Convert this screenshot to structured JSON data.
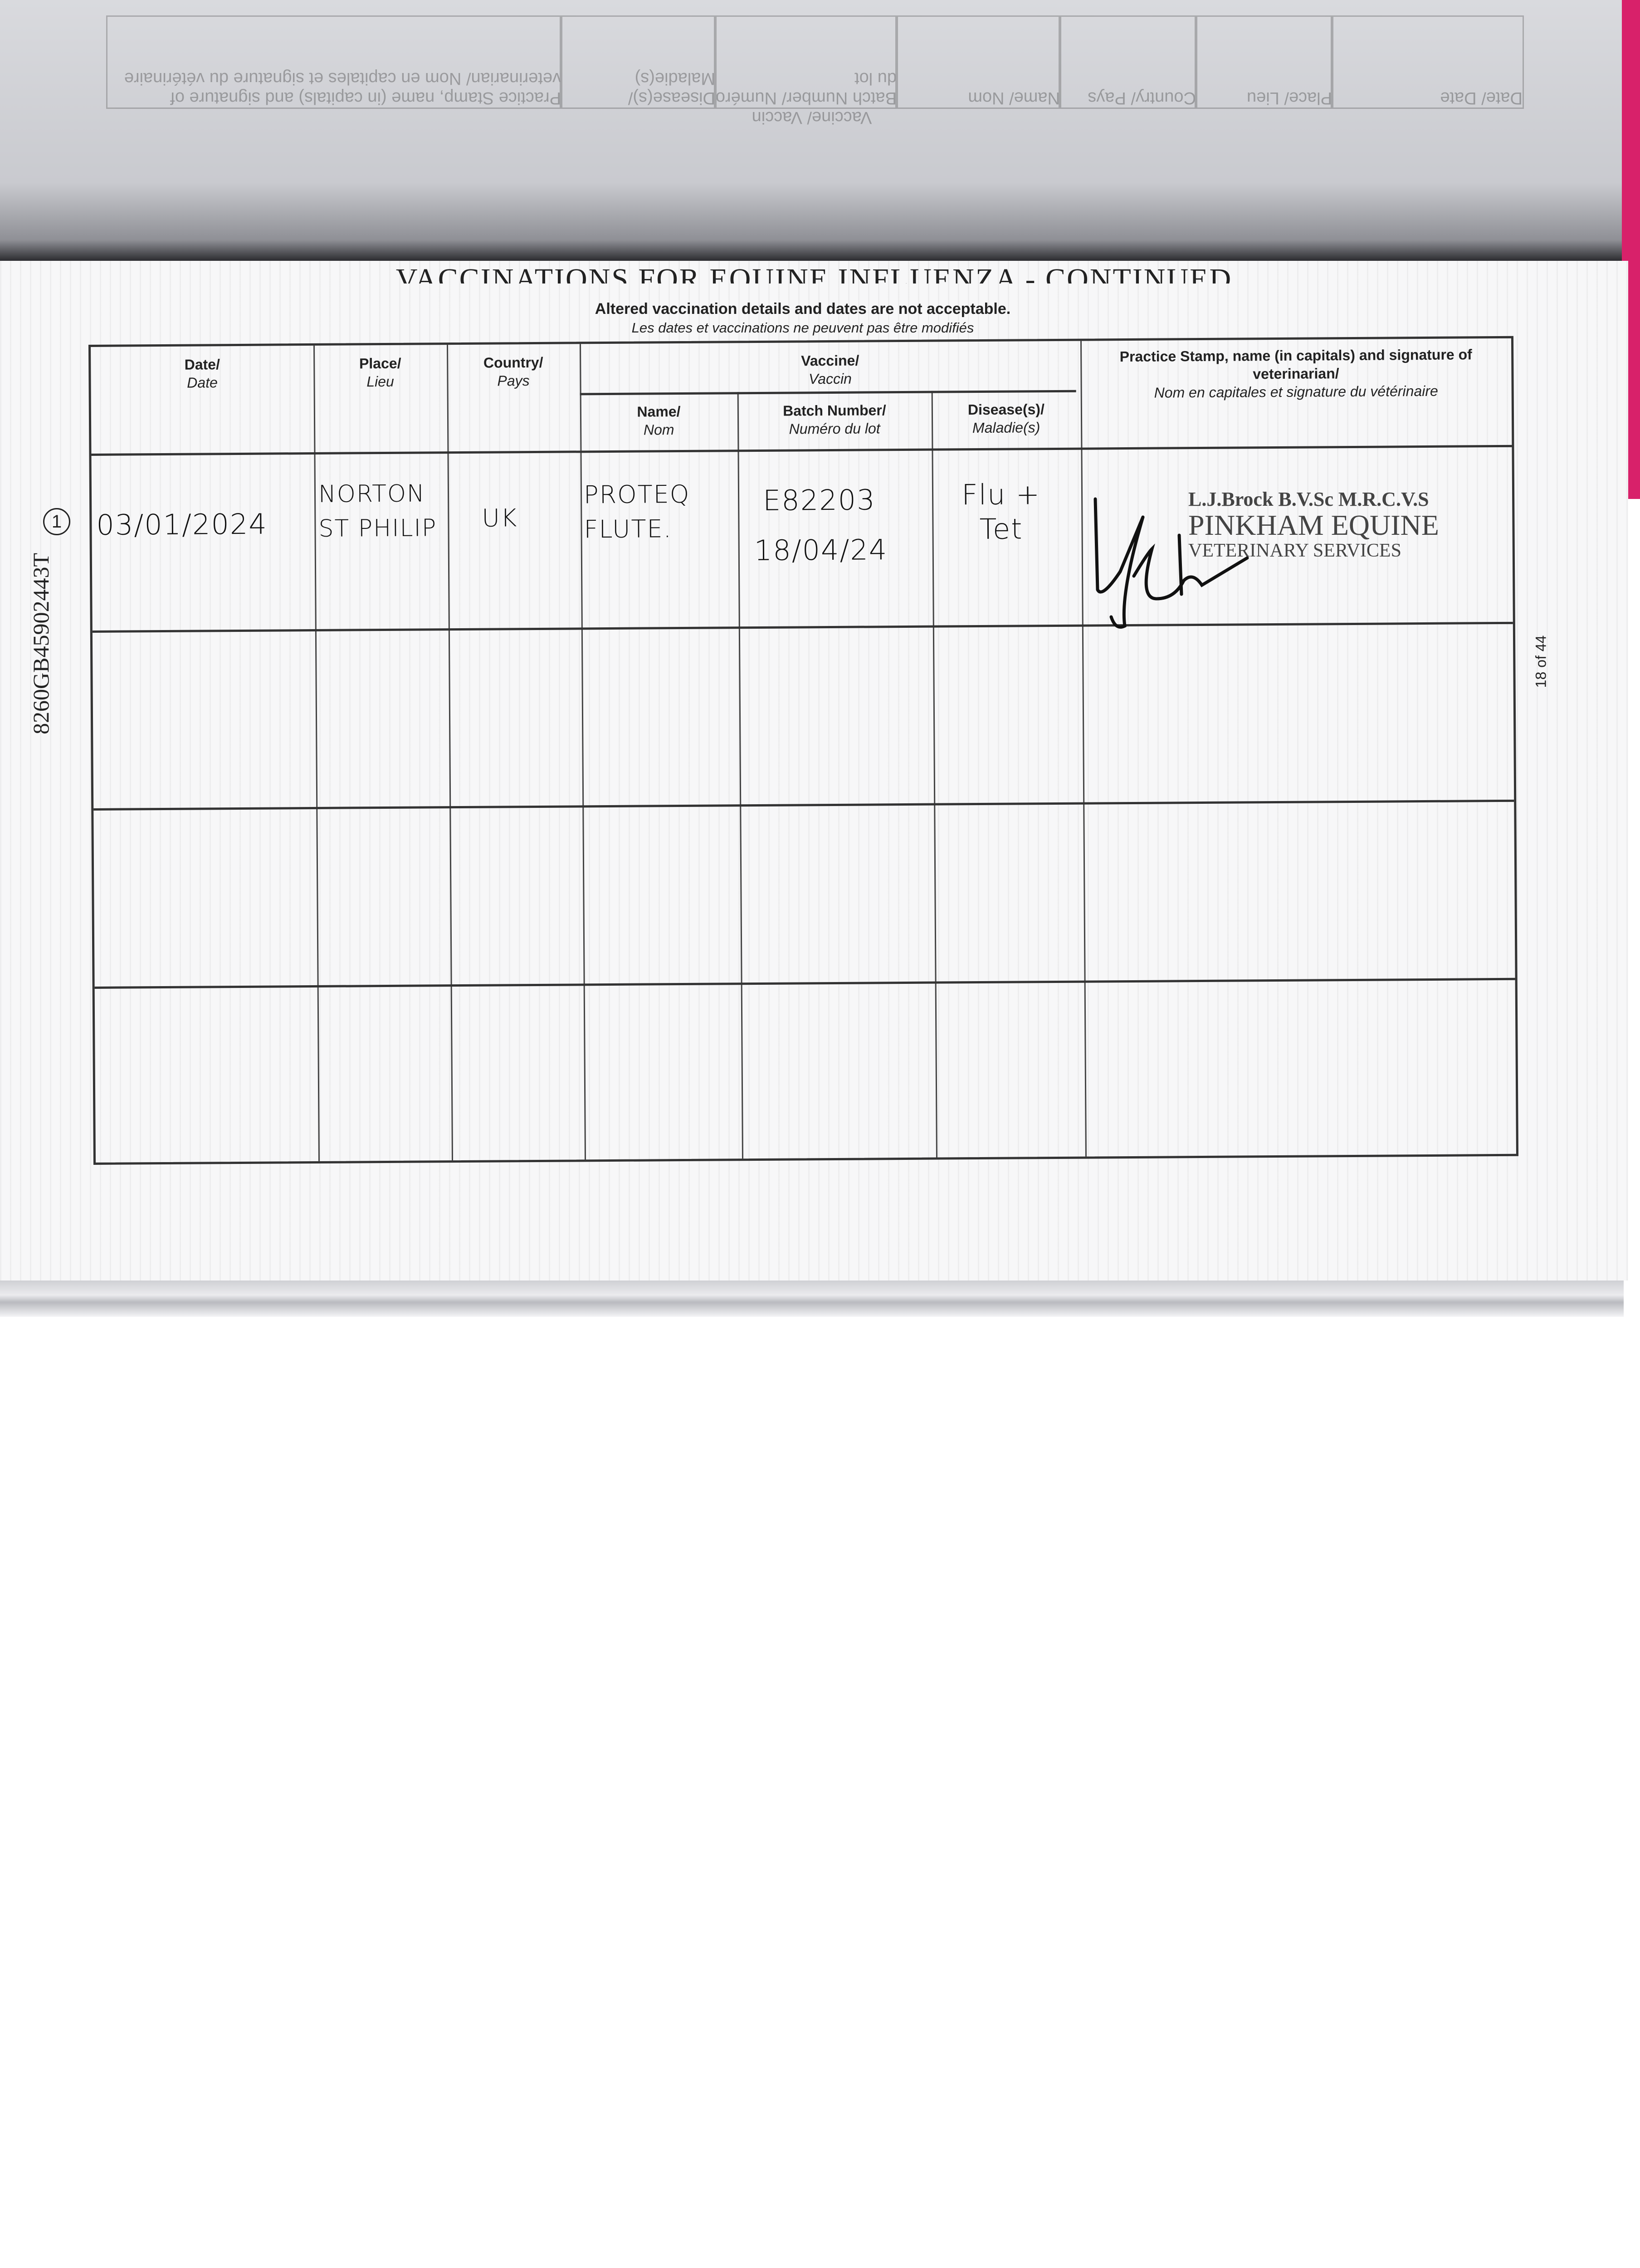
{
  "previous_page": {
    "headers": [
      "Date/ Date",
      "Place/ Lieu",
      "Country/ Pays",
      "Vaccine/ Vaccin",
      "Name/ Nom",
      "Batch Number/ Numéro du lot",
      "Disease(s)/ Maladie(s)",
      "Practice Stamp, name (in capitals) and signature of veterinarian/ Nom en capitales et signature du vétérinaire"
    ]
  },
  "title": "VACCINATIONS FOR EQUINE INFLUENZA - CONTINUED",
  "notice": {
    "en": "Altered vaccination details and dates are not acceptable.",
    "fr": "Les dates et vaccinations ne peuvent pas être modifiés"
  },
  "side_id": "8260GB45902443T",
  "entry_marker": "1",
  "page_number": "18 of 44",
  "table": {
    "headers": {
      "date": {
        "en": "Date/",
        "fr": "Date"
      },
      "place": {
        "en": "Place/",
        "fr": "Lieu"
      },
      "country": {
        "en": "Country/",
        "fr": "Pays"
      },
      "vaccine": {
        "en": "Vaccine/",
        "fr": "Vaccin"
      },
      "name": {
        "en": "Name/",
        "fr": "Nom"
      },
      "batch": {
        "en": "Batch Number/",
        "fr": "Numéro du lot"
      },
      "disease": {
        "en": "Disease(s)/",
        "fr": "Maladie(s)"
      },
      "stamp": {
        "en": "Practice Stamp, name (in capitals) and signature of veterinarian/",
        "fr": "Nom en capitales et signature du vétérinaire"
      }
    },
    "rows": [
      {
        "date": "03/01/2024",
        "place": "NORTON ST PHILIP",
        "country": "UK",
        "name": "PROTEQ FLUTE.",
        "batch": "E82203",
        "batch_expiry": "18/04/24",
        "disease": "Flu + Tet",
        "stamp": {
          "line1": "L.J.Brock B.V.Sc  M.R.C.V.S",
          "line2": "PINKHAM EQUINE",
          "line3": "VETERINARY SERVICES"
        }
      },
      {},
      {},
      {}
    ]
  }
}
